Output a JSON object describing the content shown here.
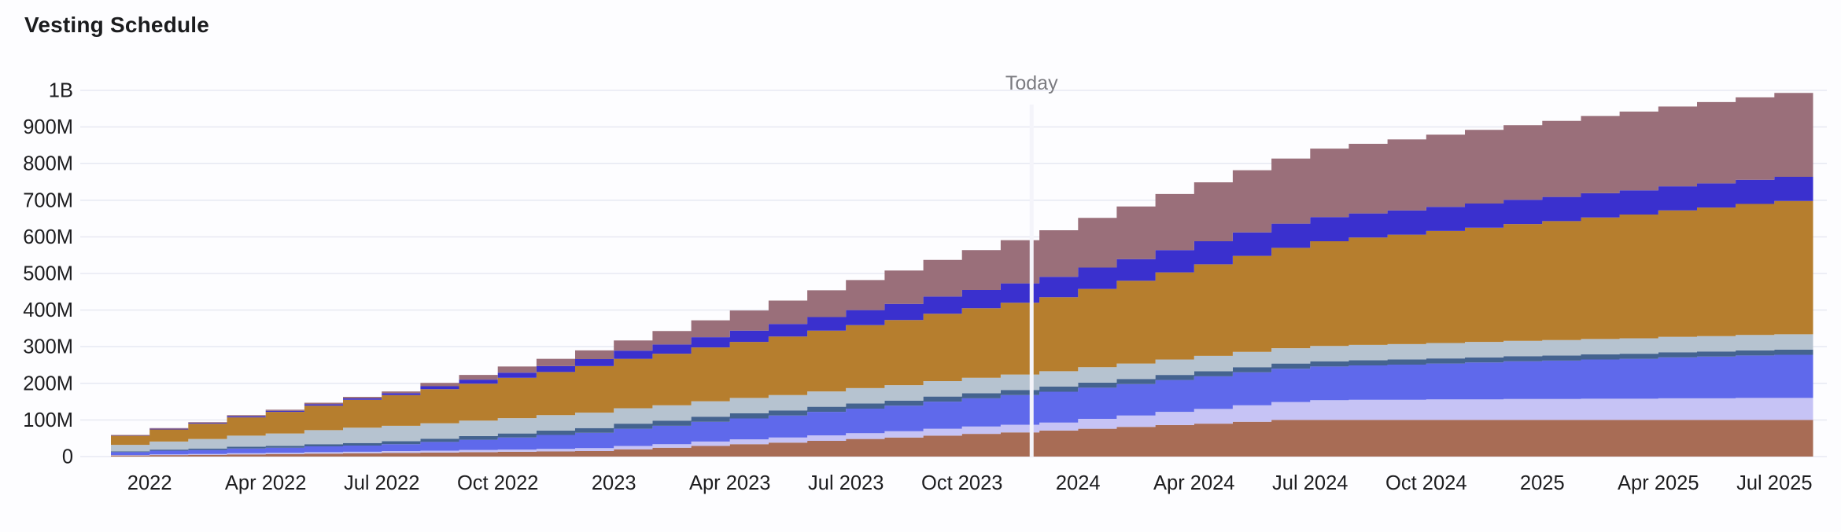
{
  "page": {
    "title": "Vesting Schedule",
    "background_color": "#fdfdff"
  },
  "chart_data": {
    "type": "area",
    "variant": "stacked-step-area",
    "title": "Vesting Schedule",
    "legend": false,
    "grid": true,
    "grid_color": "#e8eaf3",
    "values_in": "millions",
    "ylim_millions": [
      0,
      1000
    ],
    "y_tick_labels": [
      "0",
      "100M",
      "200M",
      "300M",
      "400M",
      "500M",
      "600M",
      "700M",
      "800M",
      "900M",
      "1B"
    ],
    "axis_text_color": "#1d1d1f",
    "months": [
      "Dec 2021",
      "Jan 2022",
      "Feb 2022",
      "Mar 2022",
      "Apr 2022",
      "May 2022",
      "Jun 2022",
      "Jul 2022",
      "Aug 2022",
      "Sep 2022",
      "Oct 2022",
      "Nov 2022",
      "Dec 2022",
      "Jan 2023",
      "Feb 2023",
      "Mar 2023",
      "Apr 2023",
      "May 2023",
      "Jun 2023",
      "Jul 2023",
      "Aug 2023",
      "Sep 2023",
      "Oct 2023",
      "Nov 2023",
      "Dec 2023",
      "Jan 2024",
      "Feb 2024",
      "Mar 2024",
      "Apr 2024",
      "May 2024",
      "Jun 2024",
      "Jul 2024",
      "Aug 2024",
      "Sep 2024",
      "Oct 2024",
      "Nov 2024",
      "Dec 2024",
      "Jan 2025",
      "Feb 2025",
      "Mar 2025",
      "Apr 2025",
      "May 2025",
      "Jun 2025",
      "Jul 2025"
    ],
    "x_ticks": [
      {
        "month_index": 1,
        "label": "2022"
      },
      {
        "month_index": 4,
        "label": "Apr 2022"
      },
      {
        "month_index": 7,
        "label": "Jul 2022"
      },
      {
        "month_index": 10,
        "label": "Oct 2022"
      },
      {
        "month_index": 13,
        "label": "2023"
      },
      {
        "month_index": 16,
        "label": "Apr 2023"
      },
      {
        "month_index": 19,
        "label": "Jul 2023"
      },
      {
        "month_index": 22,
        "label": "Oct 2023"
      },
      {
        "month_index": 25,
        "label": "2024"
      },
      {
        "month_index": 28,
        "label": "Apr 2024"
      },
      {
        "month_index": 31,
        "label": "Jul 2024"
      },
      {
        "month_index": 34,
        "label": "Oct 2024"
      },
      {
        "month_index": 37,
        "label": "2025"
      },
      {
        "month_index": 40,
        "label": "Apr 2025"
      },
      {
        "month_index": 43,
        "label": "Jul 2025"
      }
    ],
    "annotation": {
      "type": "vertical-line",
      "label": "Today",
      "month_position": 23.8,
      "line_color": "#f4f4fa",
      "label_color": "#7b7b80"
    },
    "series": [
      {
        "name": "band-1-sienna",
        "color": "#a86c55",
        "values": [
          3,
          4,
          5,
          6,
          7,
          8,
          9,
          10,
          11,
          12,
          13,
          14,
          15,
          20,
          24,
          29,
          34,
          38,
          43,
          48,
          52,
          57,
          62,
          66,
          71,
          76,
          81,
          86,
          90,
          95,
          100,
          100,
          100,
          100,
          100,
          100,
          100,
          100,
          100,
          100,
          100,
          100,
          100,
          100
        ]
      },
      {
        "name": "band-2-lavender",
        "color": "#c6c3f5",
        "values": [
          1,
          2,
          2,
          3,
          3,
          4,
          4,
          5,
          5,
          6,
          6,
          7,
          8,
          9,
          10,
          12,
          13,
          14,
          15,
          16,
          17,
          19,
          20,
          21,
          22,
          27,
          31,
          36,
          40,
          45,
          49,
          54,
          55,
          55,
          56,
          56,
          57,
          57,
          58,
          58,
          59,
          59,
          60,
          60
        ]
      },
      {
        "name": "band-3-periwinkle",
        "color": "#5f69eb",
        "values": [
          8,
          10,
          11,
          13,
          14,
          16,
          17,
          19,
          24,
          28,
          33,
          38,
          42,
          47,
          50,
          54,
          57,
          60,
          64,
          67,
          70,
          74,
          77,
          81,
          84,
          85,
          86,
          87,
          89,
          90,
          91,
          92,
          94,
          96,
          98,
          101,
          103,
          105,
          107,
          109,
          112,
          114,
          116,
          118
        ]
      },
      {
        "name": "band-4-steel-blue",
        "color": "#44638f",
        "values": [
          2,
          3,
          4,
          5,
          5,
          6,
          7,
          8,
          9,
          10,
          11,
          12,
          13,
          14,
          14,
          14,
          14,
          14,
          14,
          14,
          14,
          14,
          14,
          14,
          14,
          14,
          14,
          14,
          14,
          14,
          14,
          14,
          14,
          14,
          14,
          14,
          14,
          14,
          14,
          14,
          14,
          14,
          14,
          14
        ]
      },
      {
        "name": "band-5-gray-blue",
        "color": "#b6c3d0",
        "values": [
          18,
          22,
          26,
          30,
          34,
          38,
          42,
          42,
          42,
          42,
          42,
          42,
          42,
          42,
          42,
          42,
          42,
          42,
          42,
          42,
          42,
          42,
          42,
          42,
          42,
          42,
          42,
          42,
          42,
          42,
          42,
          42,
          42,
          42,
          42,
          42,
          42,
          42,
          42,
          42,
          42,
          42,
          42,
          42
        ]
      },
      {
        "name": "band-6-amber",
        "color": "#b67e2e",
        "values": [
          25,
          33,
          42,
          50,
          59,
          67,
          76,
          84,
          93,
          101,
          110,
          118,
          127,
          135,
          141,
          147,
          153,
          160,
          166,
          172,
          178,
          184,
          190,
          196,
          202,
          214,
          226,
          238,
          250,
          262,
          274,
          286,
          293,
          299,
          306,
          312,
          319,
          325,
          332,
          338,
          345,
          351,
          358,
          364
        ]
      },
      {
        "name": "band-7-indigo",
        "color": "#3a30ce",
        "values": [
          1,
          2,
          2,
          3,
          3,
          4,
          4,
          5,
          8,
          11,
          14,
          16,
          19,
          22,
          25,
          28,
          31,
          34,
          37,
          41,
          44,
          47,
          50,
          53,
          56,
          58,
          59,
          61,
          63,
          64,
          66,
          66,
          66,
          66,
          66,
          66,
          66,
          66,
          66,
          66,
          66,
          66,
          66,
          66
        ]
      },
      {
        "name": "band-8-mauve",
        "color": "#9a6f7a",
        "values": [
          1,
          2,
          2,
          3,
          3,
          4,
          4,
          5,
          9,
          13,
          17,
          20,
          24,
          28,
          37,
          46,
          55,
          64,
          73,
          82,
          91,
          100,
          109,
          118,
          127,
          136,
          144,
          153,
          161,
          170,
          178,
          187,
          190,
          194,
          197,
          201,
          204,
          208,
          211,
          215,
          218,
          222,
          225,
          229
        ]
      }
    ]
  }
}
